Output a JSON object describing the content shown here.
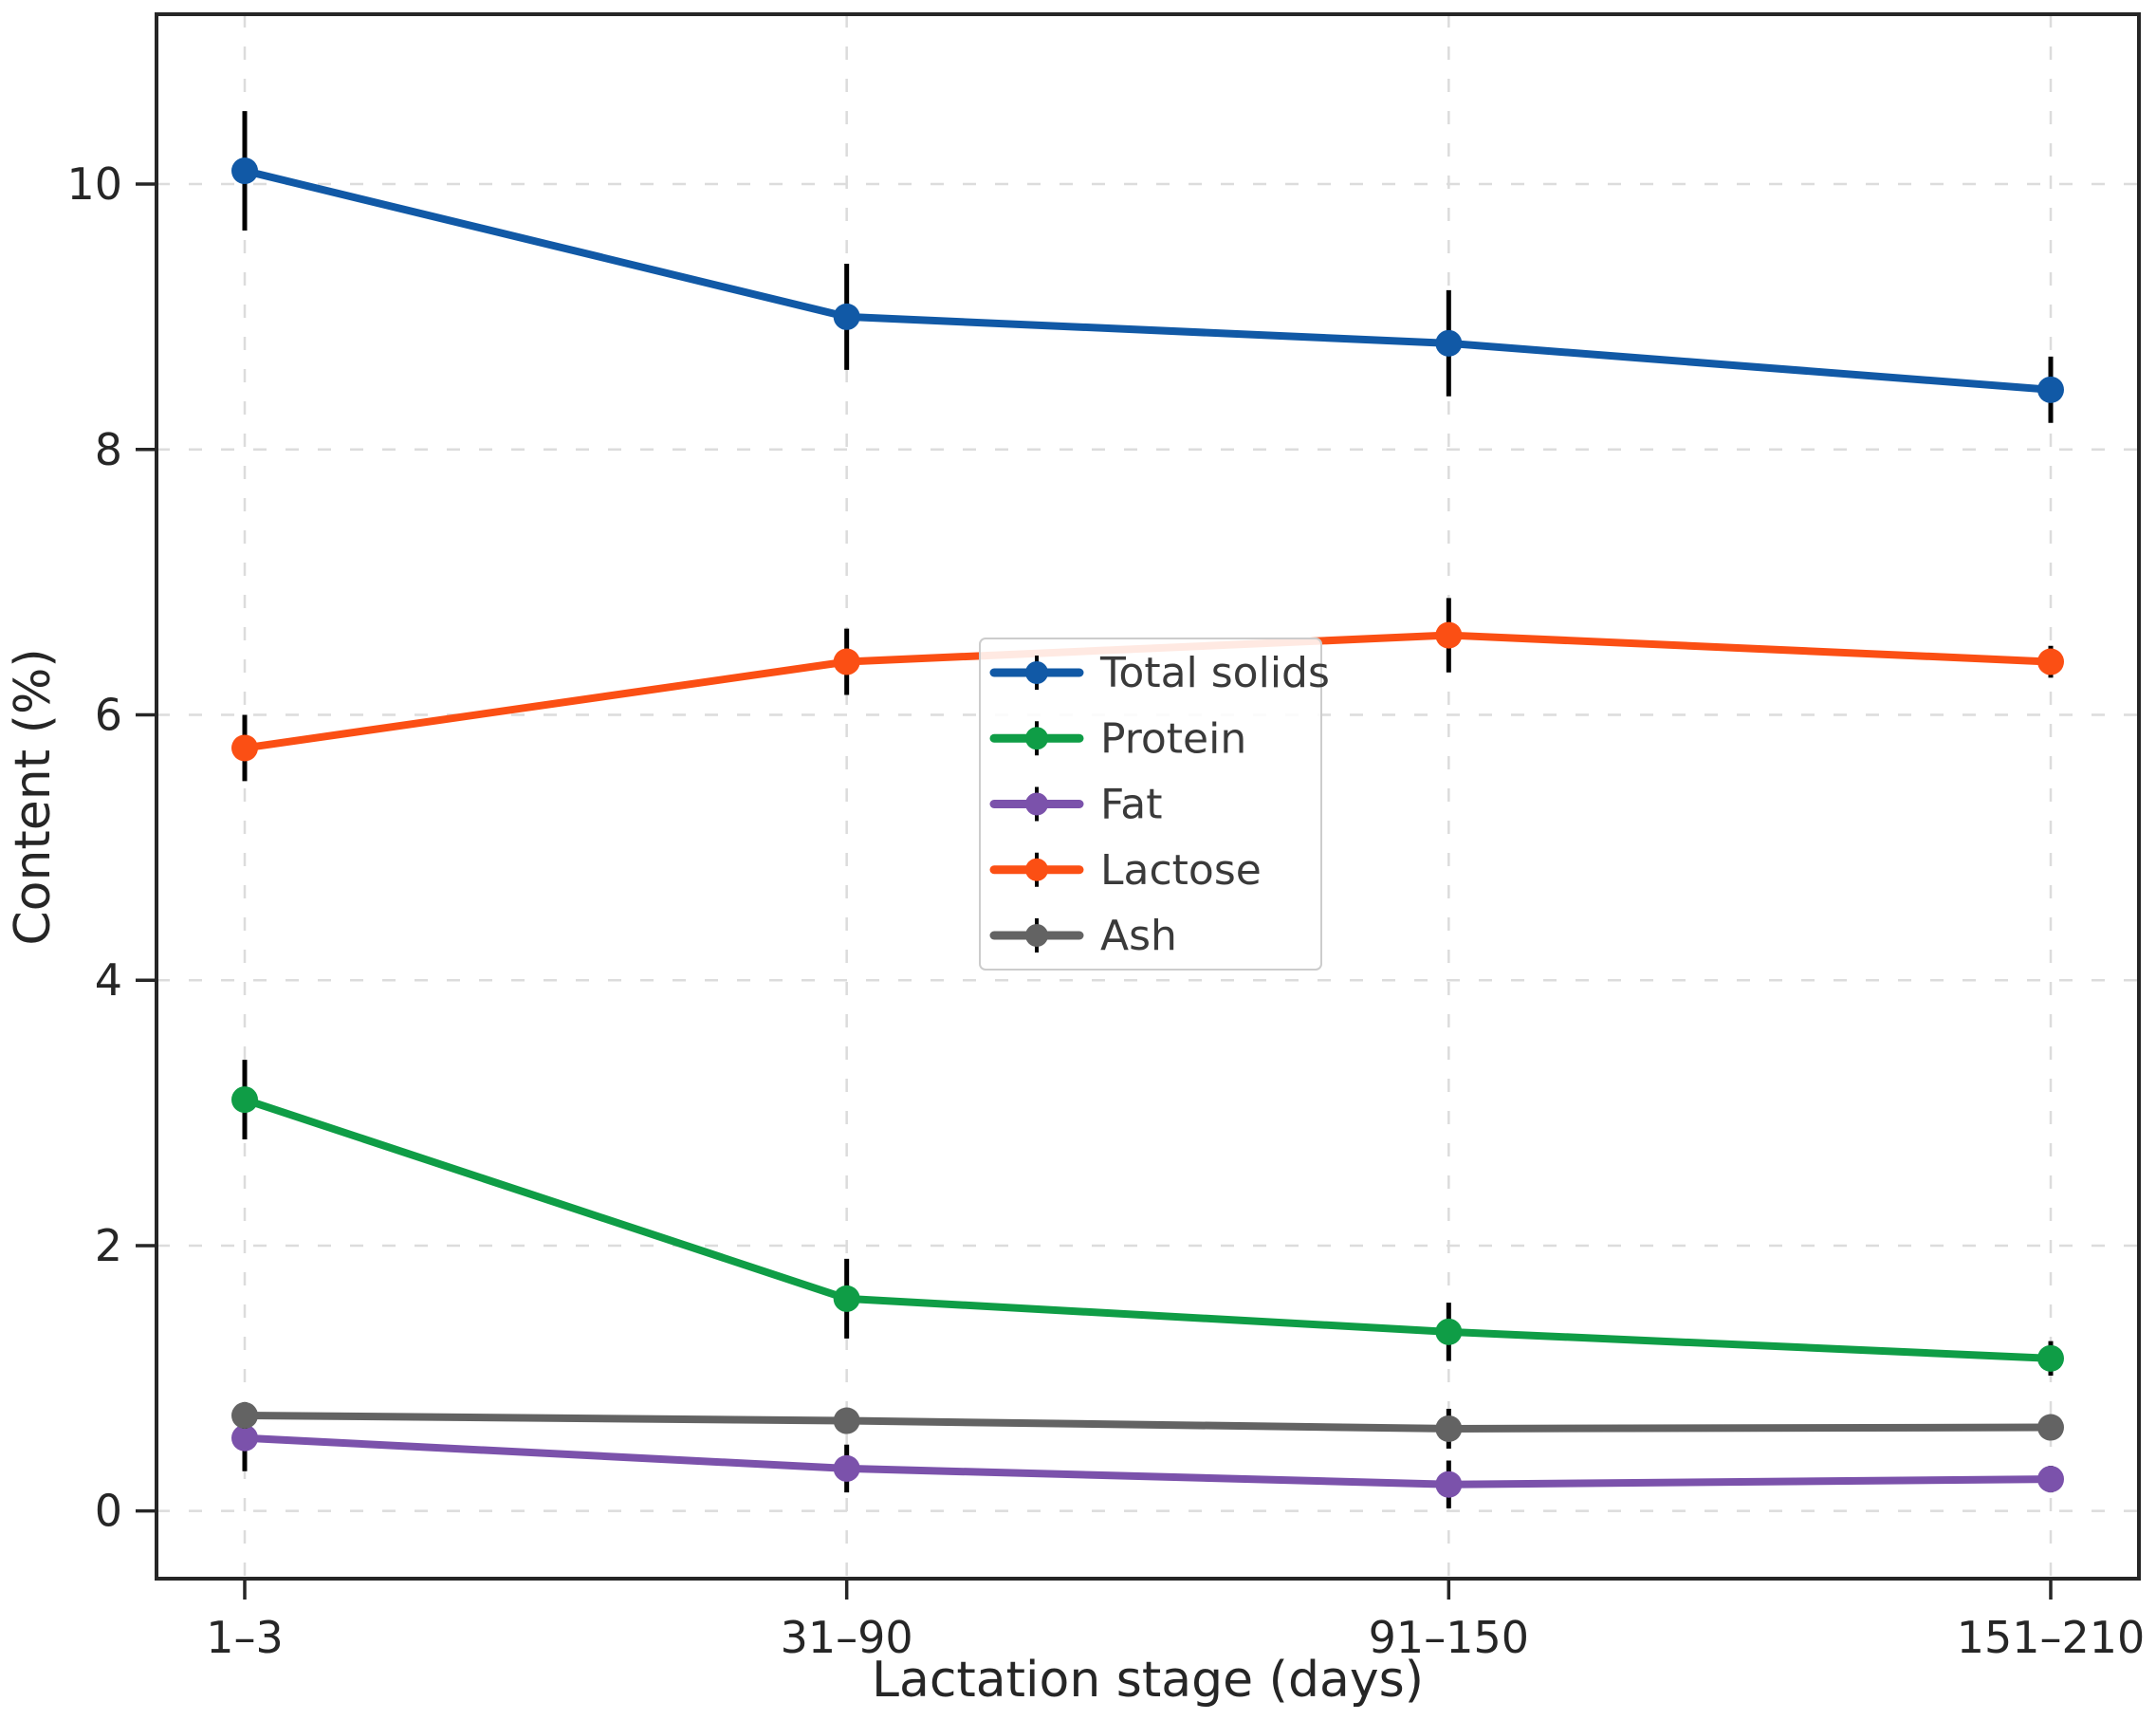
{
  "figure": {
    "xlabel": "Lactation stage (days)",
    "ylabel": "Content (%)"
  },
  "colors": {
    "axis": "#262626",
    "grid": "#dcdcdc",
    "error_bar": "#000000",
    "tick_text": "#262626",
    "legend_text": "#3a3a3a",
    "legend_border": "#cccccc"
  },
  "chart_data": {
    "type": "line",
    "categories": [
      "1–3",
      "31–90",
      "91–150",
      "151–210"
    ],
    "xlabel": "Lactation stage (days)",
    "ylabel": "Content (%)",
    "yticks": [
      0,
      2,
      4,
      6,
      8,
      10
    ],
    "ylim": [
      -0.51,
      11.28
    ],
    "grid": true,
    "legend_position": "center",
    "series": [
      {
        "name": "Total solids",
        "color": "#1159a6",
        "values": [
          10.1,
          9.0,
          8.8,
          8.45
        ],
        "errors": [
          0.45,
          0.4,
          0.4,
          0.25
        ]
      },
      {
        "name": "Protein",
        "color": "#0f9d46",
        "values": [
          3.1,
          1.6,
          1.35,
          1.15
        ],
        "errors": [
          0.3,
          0.3,
          0.22,
          0.13
        ]
      },
      {
        "name": "Fat",
        "color": "#7b52ab",
        "values": [
          0.55,
          0.32,
          0.2,
          0.24
        ],
        "errors": [
          0.25,
          0.18,
          0.18,
          0.1
        ]
      },
      {
        "name": "Lactose",
        "color": "#fb4f14",
        "values": [
          5.75,
          6.4,
          6.6,
          6.4
        ],
        "errors": [
          0.25,
          0.25,
          0.28,
          0.12
        ]
      },
      {
        "name": "Ash",
        "color": "#636363",
        "values": [
          0.72,
          0.68,
          0.62,
          0.63
        ],
        "errors": [
          0.1,
          0.08,
          0.15,
          0.08
        ]
      }
    ]
  }
}
